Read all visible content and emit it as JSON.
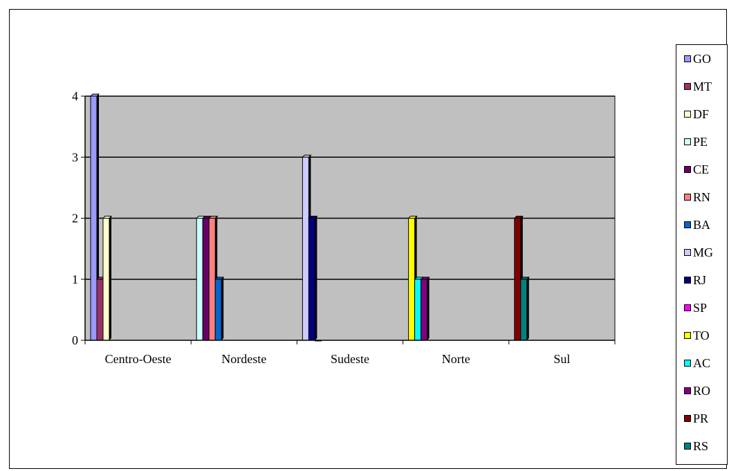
{
  "chart_data": {
    "type": "bar",
    "categories": [
      "Centro-Oeste",
      "Nordeste",
      "Sudeste",
      "Norte",
      "Sul"
    ],
    "y_ticks": [
      "0",
      "1",
      "2",
      "3",
      "4"
    ],
    "ylim": [
      0,
      4
    ],
    "grid": true,
    "legend_position": "right",
    "plot_background": "#c0c0c0",
    "series": [
      {
        "name": "GO",
        "color": "#9999ff",
        "values": [
          4,
          0,
          0,
          0,
          0
        ]
      },
      {
        "name": "MT",
        "color": "#993366",
        "values": [
          1,
          0,
          0,
          0,
          0
        ]
      },
      {
        "name": "DF",
        "color": "#ffffcc",
        "values": [
          2,
          0,
          0,
          0,
          0
        ]
      },
      {
        "name": "PE",
        "color": "#ccffff",
        "values": [
          0,
          2,
          0,
          0,
          0
        ]
      },
      {
        "name": "CE",
        "color": "#660066",
        "values": [
          0,
          2,
          0,
          0,
          0
        ]
      },
      {
        "name": "RN",
        "color": "#ff8080",
        "values": [
          0,
          2,
          0,
          0,
          0
        ]
      },
      {
        "name": "BA",
        "color": "#0066cc",
        "values": [
          0,
          1,
          0,
          0,
          0
        ]
      },
      {
        "name": "MG",
        "color": "#ccccff",
        "values": [
          0,
          0,
          3,
          0,
          0
        ]
      },
      {
        "name": "RJ",
        "color": "#000080",
        "values": [
          0,
          0,
          2,
          0,
          0
        ]
      },
      {
        "name": "SP",
        "color": "#ff00ff",
        "values": [
          0,
          0,
          0,
          0,
          0
        ]
      },
      {
        "name": "TO",
        "color": "#ffff00",
        "values": [
          0,
          0,
          0,
          2,
          0
        ]
      },
      {
        "name": "AC",
        "color": "#00ffff",
        "values": [
          0,
          0,
          0,
          1,
          0
        ]
      },
      {
        "name": "RO",
        "color": "#800080",
        "values": [
          0,
          0,
          0,
          1,
          0
        ]
      },
      {
        "name": "PR",
        "color": "#800000",
        "values": [
          0,
          0,
          0,
          0,
          2
        ]
      },
      {
        "name": "RS",
        "color": "#008080",
        "values": [
          0,
          0,
          0,
          0,
          1
        ]
      }
    ]
  }
}
